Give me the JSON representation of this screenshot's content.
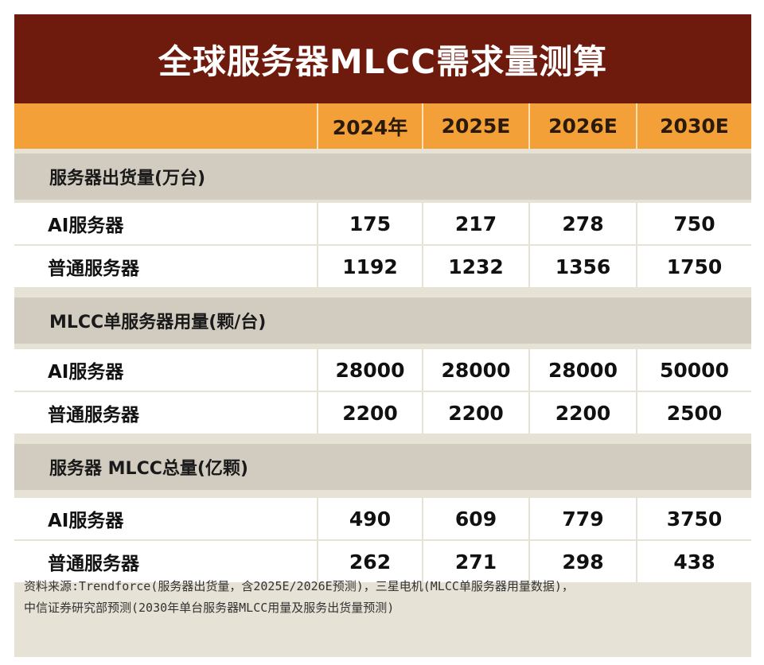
{
  "title": "全球服务器MLCC需求量测算",
  "columns": [
    "2024年",
    "2025E",
    "2026E",
    "2030E"
  ],
  "sections": [
    {
      "heading": "服务器出货量(万台)",
      "rows": [
        {
          "label": "AI服务器",
          "values": [
            "175",
            "217",
            "278",
            "750"
          ]
        },
        {
          "label": "普通服务器",
          "values": [
            "1192",
            "1232",
            "1356",
            "1750"
          ]
        }
      ]
    },
    {
      "heading": "MLCC单服务器用量(颗/台)",
      "rows": [
        {
          "label": "AI服务器",
          "values": [
            "28000",
            "28000",
            "28000",
            "50000"
          ]
        },
        {
          "label": "普通服务器",
          "values": [
            "2200",
            "2200",
            "2200",
            "2500"
          ]
        }
      ]
    },
    {
      "heading": "服务器 MLCC总量(亿颗)",
      "rows": [
        {
          "label": "AI服务器",
          "values": [
            "490",
            "609",
            "779",
            "3750"
          ]
        },
        {
          "label": "普通服务器",
          "values": [
            "262",
            "271",
            "298",
            "438"
          ]
        }
      ]
    }
  ],
  "source_lines": [
    "资料来源:Trendforce(服务器出货量，含2025E/2026E预测)，三星电机(MLCC单服务器用量数据)，",
    "中信证券研究部预测(2030年单台服务器MLCC用量及服务出货量预测)"
  ],
  "colors": {
    "title_bg": "#6e1a0c",
    "header_bg": "#f2a037",
    "section_bg": "#d1ccbf",
    "cell_bg": "#ffffff"
  }
}
